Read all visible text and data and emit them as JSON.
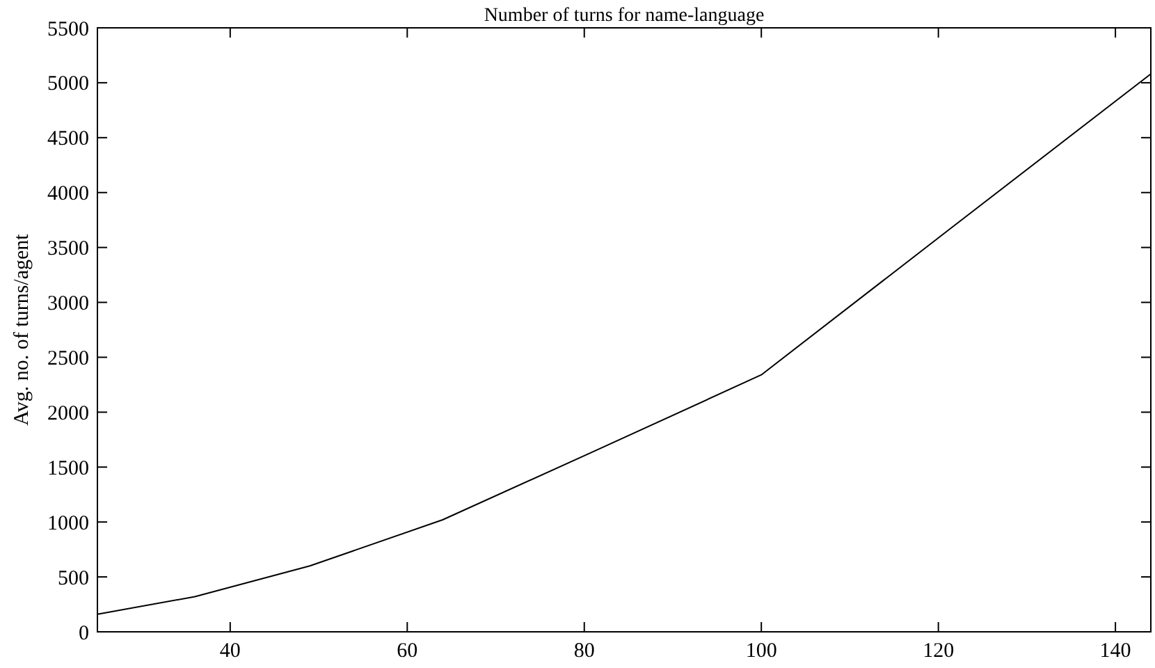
{
  "chart_data": {
    "type": "line",
    "title": "Number of turns for name-language",
    "ylabel": "Avg. no. of turns/agent",
    "x": [
      25,
      36,
      49,
      64,
      81,
      100,
      121,
      144
    ],
    "series": [
      {
        "color": "#000000",
        "values": [
          160,
          320,
          600,
          1020,
          1640,
          2340,
          3650,
          5080
        ]
      }
    ],
    "xlim": [
      25,
      144
    ],
    "xticks": [
      40,
      60,
      80,
      100,
      120,
      140
    ],
    "ylim": [
      0,
      5500
    ],
    "yticks": [
      0,
      500,
      1000,
      1500,
      2000,
      2500,
      3000,
      3500,
      4000,
      4500,
      5000,
      5500
    ],
    "grid": false,
    "marker": "none",
    "line_style": "solid"
  }
}
